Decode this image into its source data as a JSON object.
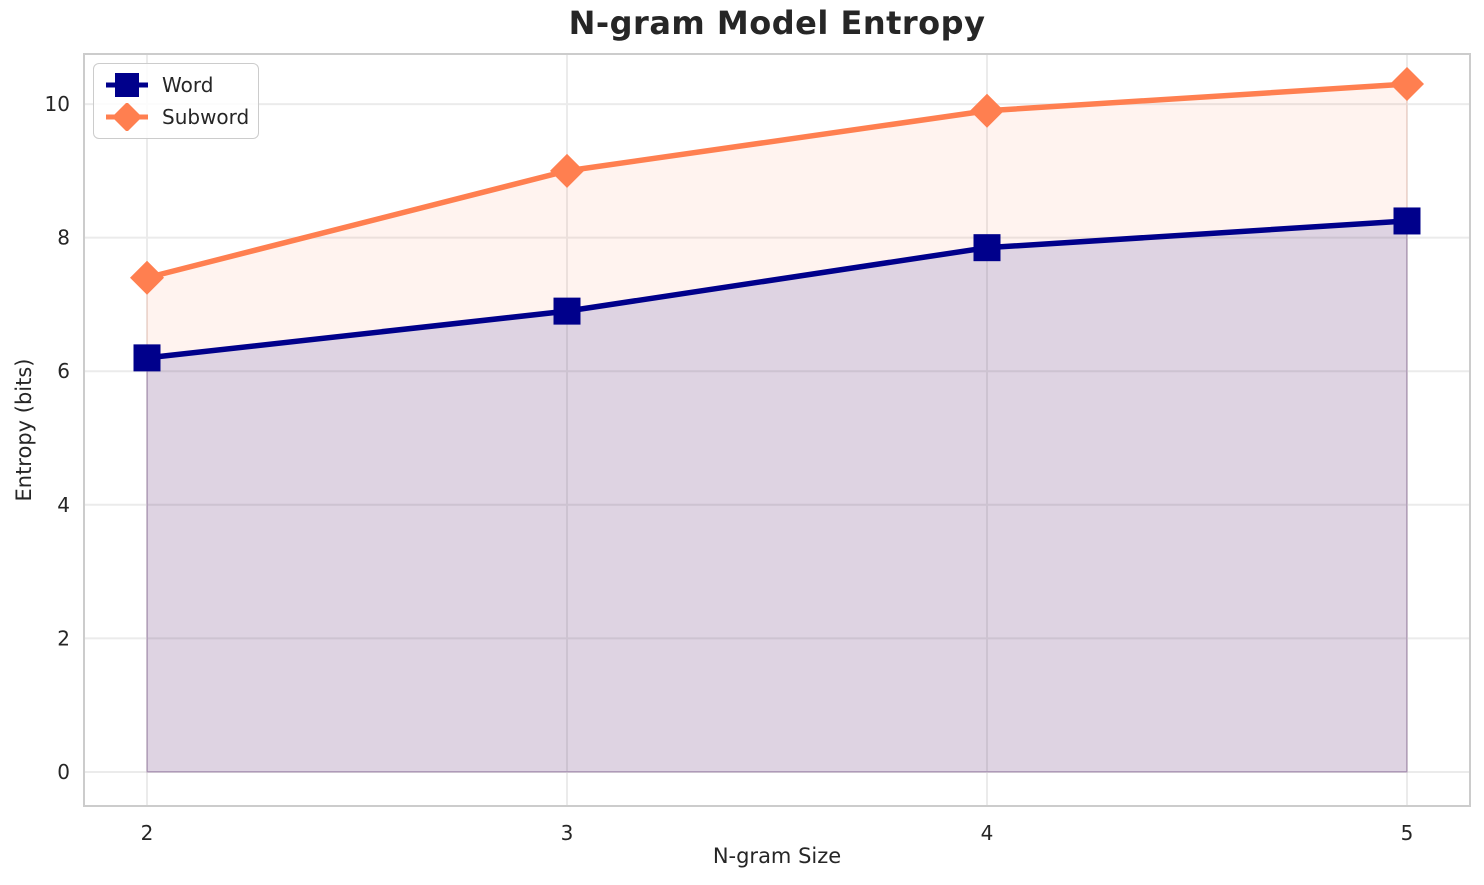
{
  "figure": {
    "background": "#ffffff",
    "grid_color": "#ebebeb",
    "spine_color": "#cccccc",
    "text_color": "#262626"
  },
  "chart_data": {
    "type": "line",
    "title": "N-gram Model Entropy",
    "xlabel": "N-gram Size",
    "ylabel": "Entropy (bits)",
    "x": [
      2,
      3,
      4,
      5
    ],
    "series": [
      {
        "name": "Word",
        "color": "#00008B",
        "marker": "square",
        "values": [
          6.2,
          6.9,
          7.85,
          8.25
        ],
        "fill_alpha": 0.13
      },
      {
        "name": "Subword",
        "color": "#FF7F50",
        "marker": "diamond",
        "values": [
          7.4,
          9.0,
          9.9,
          10.3
        ],
        "fill_alpha": 0.09
      }
    ],
    "xticks": [
      2,
      3,
      4,
      5
    ],
    "yticks": [
      0,
      2,
      4,
      6,
      8,
      10
    ],
    "xlim": [
      1.85,
      5.15
    ],
    "ylim": [
      -0.51,
      10.75
    ],
    "grid": true,
    "area_fill_to": 0,
    "legend_position": "upper left"
  }
}
